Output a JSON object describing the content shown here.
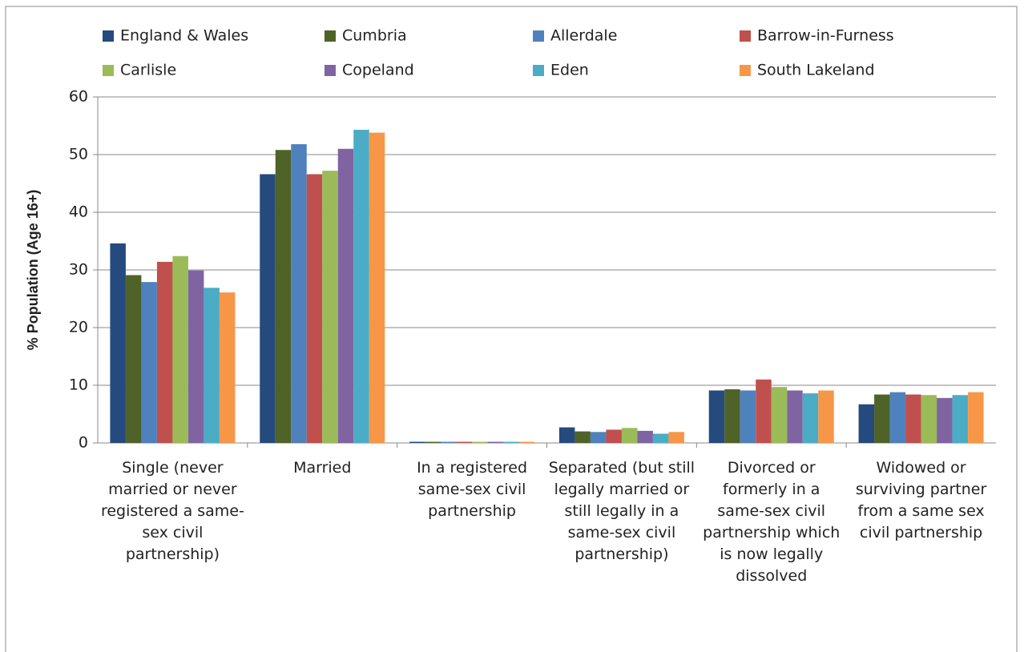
{
  "chart_data": {
    "type": "bar",
    "y_label": "% Population (Age 16+)",
    "categories": [
      "Single (never married or never registered a same-sex civil partnership)",
      "Married",
      "In a registered same-sex civil partnership",
      "Separated (but still legally married or still legally in a same-sex civil partnership)",
      "Divorced or formerly in a same-sex civil partnership which is now legally dissolved",
      "Widowed or surviving partner from a same sex civil partnership"
    ],
    "series": [
      {
        "name": "England & Wales",
        "color": "#254a7d",
        "values": [
          34.6,
          46.6,
          0.2,
          2.7,
          9.1,
          6.7
        ]
      },
      {
        "name": "Cumbria",
        "color": "#4f6228",
        "values": [
          29.1,
          50.8,
          0.2,
          2.0,
          9.3,
          8.4
        ]
      },
      {
        "name": "Allerdale",
        "color": "#4f81bd",
        "values": [
          27.9,
          51.8,
          0.2,
          1.9,
          9.1,
          8.8
        ]
      },
      {
        "name": "Barrow-in-Furness",
        "color": "#c0504d",
        "values": [
          31.4,
          46.6,
          0.2,
          2.3,
          11.0,
          8.4
        ]
      },
      {
        "name": "Carlisle",
        "color": "#9bbb59",
        "values": [
          32.4,
          47.2,
          0.2,
          2.6,
          9.7,
          8.3
        ]
      },
      {
        "name": "Copeland",
        "color": "#8064a2",
        "values": [
          29.9,
          51.0,
          0.2,
          2.1,
          9.1,
          7.8
        ]
      },
      {
        "name": "Eden",
        "color": "#4bacc6",
        "values": [
          26.9,
          54.3,
          0.2,
          1.6,
          8.6,
          8.3
        ]
      },
      {
        "name": "South Lakeland",
        "color": "#f79646",
        "values": [
          26.1,
          53.8,
          0.2,
          1.9,
          9.1,
          8.8
        ]
      }
    ],
    "ylim": [
      0,
      60
    ],
    "yticks": [
      0,
      10,
      20,
      30,
      40,
      50,
      60
    ],
    "grid": true,
    "legend": "top"
  }
}
